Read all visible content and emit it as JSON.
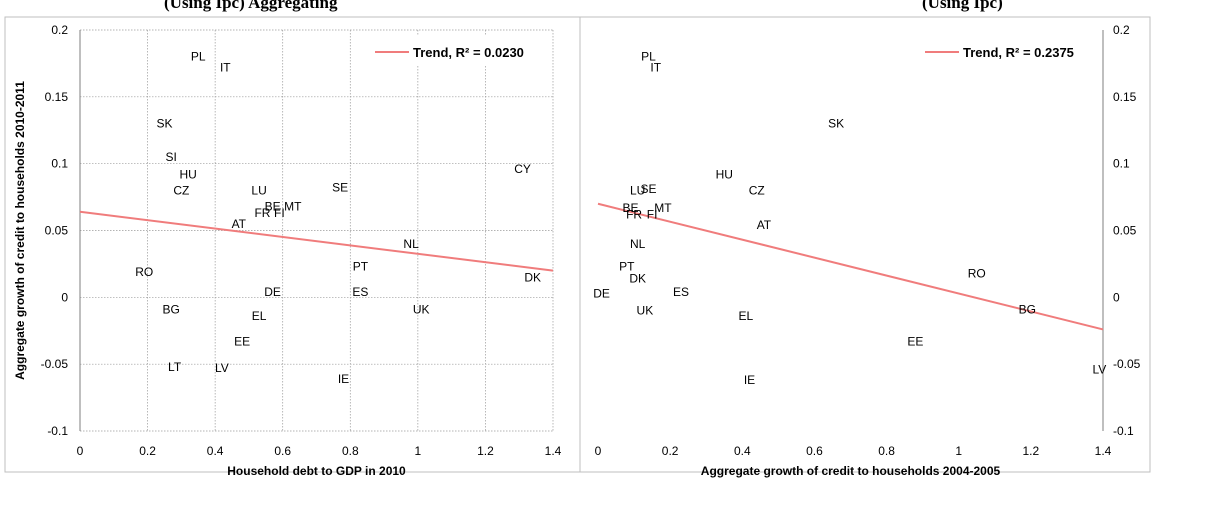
{
  "header": {
    "left_fragment": "(Using Ipc) Aggregating",
    "right_fragment": "(Using Ipc)"
  },
  "colors": {
    "trend": "#f07c7c",
    "grid": "#9a9a9a",
    "axis": "#7f7f7f",
    "frame": "#bfbfbf"
  },
  "chart_data": [
    {
      "type": "scatter",
      "xlabel": "Household debt to GDP in 2010",
      "ylabel": "Aggregate growth of credit to households 2010-2011",
      "xlim": [
        0,
        1.4
      ],
      "ylim": [
        -0.1,
        0.2
      ],
      "x_ticks": [
        "0",
        "0.2",
        "0.4",
        "0.6",
        "0.8",
        "1",
        "1.2",
        "1.4"
      ],
      "y_ticks": [
        "-0.1",
        "-0.05",
        "0",
        "0.05",
        "0.1",
        "0.15",
        "0.2"
      ],
      "y_axis_side": "left",
      "grid": true,
      "legend_position": "top-right",
      "trend": {
        "label": "Trend, R² = 0.0230",
        "x": [
          0,
          1.4
        ],
        "y": [
          0.064,
          0.02
        ]
      },
      "points": [
        {
          "label": "PL",
          "x": 0.35,
          "y": 0.18
        },
        {
          "label": "IT",
          "x": 0.43,
          "y": 0.172
        },
        {
          "label": "SK",
          "x": 0.25,
          "y": 0.13
        },
        {
          "label": "SI",
          "x": 0.27,
          "y": 0.105
        },
        {
          "label": "HU",
          "x": 0.32,
          "y": 0.092
        },
        {
          "label": "CZ",
          "x": 0.3,
          "y": 0.08
        },
        {
          "label": "LU",
          "x": 0.53,
          "y": 0.08
        },
        {
          "label": "SE",
          "x": 0.77,
          "y": 0.082
        },
        {
          "label": "CY",
          "x": 1.31,
          "y": 0.096
        },
        {
          "label": "BE",
          "x": 0.57,
          "y": 0.068
        },
        {
          "label": "MT",
          "x": 0.63,
          "y": 0.068
        },
        {
          "label": "FR",
          "x": 0.54,
          "y": 0.063
        },
        {
          "label": "FI",
          "x": 0.59,
          "y": 0.063
        },
        {
          "label": "AT",
          "x": 0.47,
          "y": 0.055
        },
        {
          "label": "NL",
          "x": 0.98,
          "y": 0.04
        },
        {
          "label": "RO",
          "x": 0.19,
          "y": 0.019
        },
        {
          "label": "PT",
          "x": 0.83,
          "y": 0.023
        },
        {
          "label": "DK",
          "x": 1.34,
          "y": 0.015
        },
        {
          "label": "DE",
          "x": 0.57,
          "y": 0.004
        },
        {
          "label": "ES",
          "x": 0.83,
          "y": 0.004
        },
        {
          "label": "BG",
          "x": 0.27,
          "y": -0.009
        },
        {
          "label": "UK",
          "x": 1.01,
          "y": -0.009
        },
        {
          "label": "EL",
          "x": 0.53,
          "y": -0.014
        },
        {
          "label": "EE",
          "x": 0.48,
          "y": -0.033
        },
        {
          "label": "LT",
          "x": 0.28,
          "y": -0.052
        },
        {
          "label": "LV",
          "x": 0.42,
          "y": -0.053
        },
        {
          "label": "IE",
          "x": 0.78,
          "y": -0.061
        }
      ]
    },
    {
      "type": "scatter",
      "xlabel": "Aggregate growth of credit to households 2004-2005",
      "ylabel": "",
      "xlim": [
        0,
        1.4
      ],
      "ylim": [
        -0.1,
        0.2
      ],
      "x_ticks": [
        "0",
        "0.2",
        "0.4",
        "0.6",
        "0.8",
        "1",
        "1.2",
        "1.4"
      ],
      "y_ticks": [
        "-0.1",
        "-0.05",
        "0",
        "0.05",
        "0.1",
        "0.15",
        "0.2"
      ],
      "y_axis_side": "right",
      "grid": false,
      "legend_position": "top-right",
      "trend": {
        "label": "Trend, R² = 0.2375",
        "x": [
          0,
          1.4
        ],
        "y": [
          0.07,
          -0.024
        ]
      },
      "points": [
        {
          "label": "PL",
          "x": 0.14,
          "y": 0.18
        },
        {
          "label": "IT",
          "x": 0.16,
          "y": 0.172
        },
        {
          "label": "SK",
          "x": 0.66,
          "y": 0.13
        },
        {
          "label": "HU",
          "x": 0.35,
          "y": 0.092
        },
        {
          "label": "LU",
          "x": 0.11,
          "y": 0.08
        },
        {
          "label": "SE",
          "x": 0.14,
          "y": 0.081
        },
        {
          "label": "CZ",
          "x": 0.44,
          "y": 0.08
        },
        {
          "label": "BE",
          "x": 0.09,
          "y": 0.067
        },
        {
          "label": "MT",
          "x": 0.18,
          "y": 0.067
        },
        {
          "label": "FR",
          "x": 0.1,
          "y": 0.062
        },
        {
          "label": "FI",
          "x": 0.15,
          "y": 0.062
        },
        {
          "label": "AT",
          "x": 0.46,
          "y": 0.054
        },
        {
          "label": "NL",
          "x": 0.11,
          "y": 0.04
        },
        {
          "label": "RO",
          "x": 1.05,
          "y": 0.018
        },
        {
          "label": "PT",
          "x": 0.08,
          "y": 0.023
        },
        {
          "label": "DK",
          "x": 0.11,
          "y": 0.014
        },
        {
          "label": "DE",
          "x": 0.01,
          "y": 0.003
        },
        {
          "label": "ES",
          "x": 0.23,
          "y": 0.004
        },
        {
          "label": "BG",
          "x": 1.19,
          "y": -0.009
        },
        {
          "label": "UK",
          "x": 0.13,
          "y": -0.01
        },
        {
          "label": "EL",
          "x": 0.41,
          "y": -0.014
        },
        {
          "label": "EE",
          "x": 0.88,
          "y": -0.033
        },
        {
          "label": "LV",
          "x": 1.39,
          "y": -0.054
        },
        {
          "label": "IE",
          "x": 0.42,
          "y": -0.062
        }
      ]
    }
  ]
}
